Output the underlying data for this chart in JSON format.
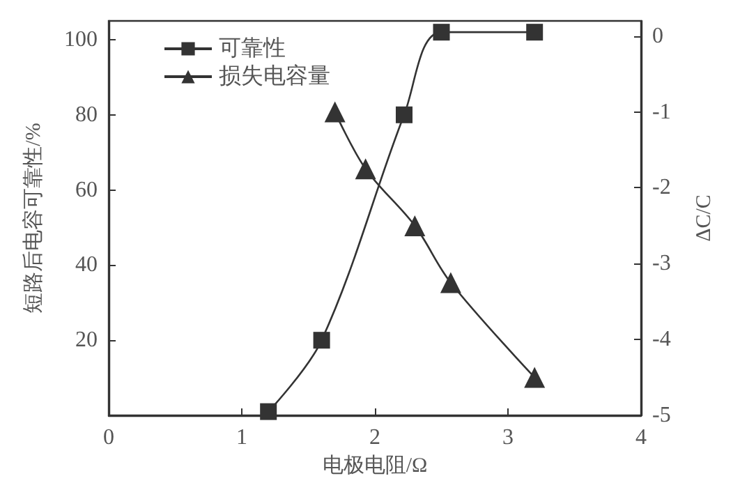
{
  "chart_data": {
    "type": "line",
    "xlabel": "电极电阻/Ω",
    "ylabel": "短路后电容可靠性/%",
    "y2label": "ΔC/C",
    "xlim": [
      0,
      4
    ],
    "xticks": [
      0,
      1,
      2,
      3,
      4
    ],
    "ylim": [
      0,
      105
    ],
    "yticks": [
      20,
      40,
      60,
      80,
      100
    ],
    "y2lim": [
      -5,
      0.2
    ],
    "y2ticks": [
      -5,
      -4,
      -3,
      -2,
      -1,
      0
    ],
    "series": [
      {
        "name": "可靠性",
        "color": "#333333",
        "marker": "square",
        "x": [
          1.2,
          1.6,
          2.22,
          2.5,
          3.2
        ],
        "values": [
          1,
          20,
          80,
          102,
          102
        ]
      },
      {
        "name": "损失电容量",
        "color": "#333333",
        "marker": "triangle",
        "axis": "y2",
        "x": [
          1.7,
          1.93,
          2.3,
          2.57,
          3.2
        ],
        "values": [
          -1.0,
          -1.75,
          -2.5,
          -3.25,
          -4.5
        ]
      }
    ],
    "legend": "top left",
    "grid": false,
    "line_style": "solid"
  }
}
